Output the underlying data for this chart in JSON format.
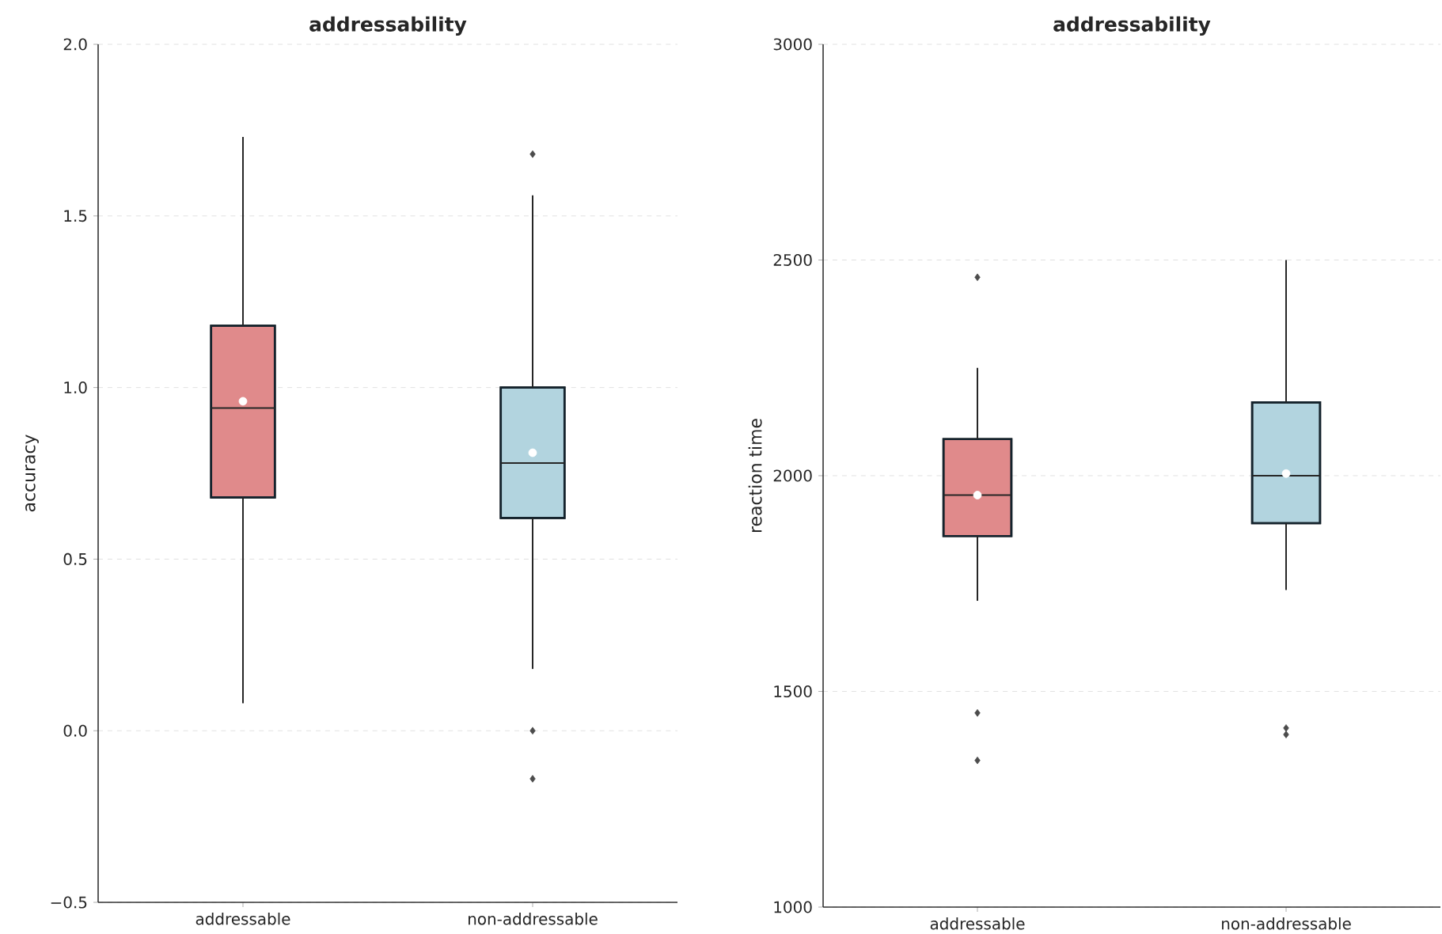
{
  "chart_data": [
    {
      "type": "box",
      "title": "addressability",
      "ylabel": "accuracy",
      "categories": [
        "addressable",
        "non-addressable"
      ],
      "colors": [
        "#e08a8b",
        "#b2d4df"
      ],
      "ylim": [
        -0.5,
        2.0
      ],
      "yticks": [
        {
          "value": -0.5,
          "label": "−0.5"
        },
        {
          "value": 0,
          "label": "0.0"
        },
        0.5,
        {
          "value": 1,
          "label": "1.0"
        },
        1.5,
        {
          "value": 2,
          "label": "2.0"
        }
      ],
      "grid": "y",
      "boxes": [
        {
          "low": 0.08,
          "q1": 0.68,
          "median": 0.94,
          "q3": 1.18,
          "high": 1.73,
          "mean": 0.96
        },
        {
          "low": 0.18,
          "q1": 0.62,
          "median": 0.78,
          "q3": 1.0,
          "high": 1.56,
          "mean": 0.81,
          "outliers": [
            1.68,
            0.0,
            -0.14
          ]
        }
      ]
    },
    {
      "type": "box",
      "title": "addressability",
      "ylabel": "reaction time",
      "categories": [
        "addressable",
        "non-addressable"
      ],
      "colors": [
        "#e08a8b",
        "#b2d4df"
      ],
      "ylim": [
        1000,
        3000
      ],
      "yticks": [
        1000,
        1500,
        2000,
        2500,
        3000
      ],
      "grid": "y",
      "boxes": [
        {
          "low": 1710,
          "q1": 1860,
          "median": 1955,
          "q3": 2085,
          "high": 2250,
          "mean": 1955,
          "outliers": [
            2460,
            1450,
            1340
          ]
        },
        {
          "low": 1735,
          "q1": 1890,
          "median": 2000,
          "q3": 2170,
          "high": 2500,
          "mean": 2005,
          "outliers": [
            1415,
            1400
          ]
        }
      ]
    }
  ]
}
